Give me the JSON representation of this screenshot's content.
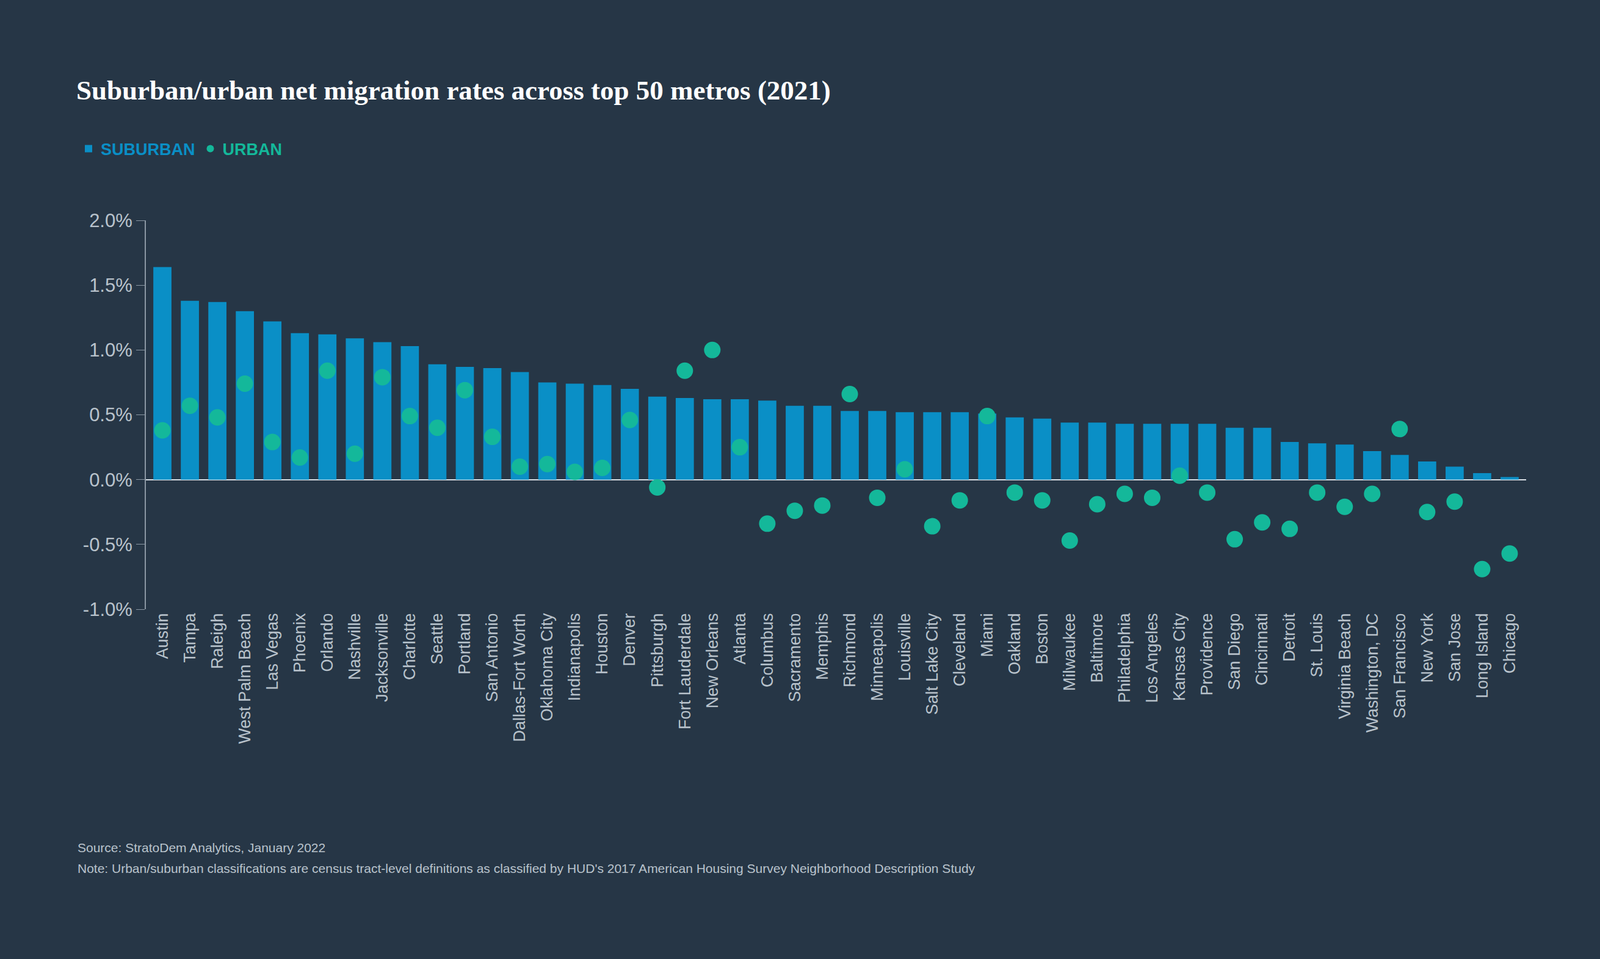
{
  "chart_data": {
    "type": "bar",
    "title": "Suburban/urban net migration rates across top 50 metros (2021)",
    "categories": [
      "Austin",
      "Tampa",
      "Raleigh",
      "West Palm Beach",
      "Las Vegas",
      "Phoenix",
      "Orlando",
      "Nashville",
      "Jacksonville",
      "Charlotte",
      "Seattle",
      "Portland",
      "San Antonio",
      "Dallas-Fort Worth",
      "Oklahoma City",
      "Indianapolis",
      "Houston",
      "Denver",
      "Pittsburgh",
      "Fort Lauderdale",
      "New Orleans",
      "Atlanta",
      "Columbus",
      "Sacramento",
      "Memphis",
      "Richmond",
      "Minneapolis",
      "Louisville",
      "Salt Lake City",
      "Cleveland",
      "Miami",
      "Oakland",
      "Boston",
      "Milwaukee",
      "Baltimore",
      "Philadelphia",
      "Los Angeles",
      "Kansas City",
      "Providence",
      "San Diego",
      "Cincinnati",
      "Detroit",
      "St. Louis",
      "Virginia Beach",
      "Washington, DC",
      "San Francisco",
      "New York",
      "San Jose",
      "Long Island",
      "Chicago"
    ],
    "series": [
      {
        "name": "SUBURBAN",
        "type": "bar",
        "color": "#0a8fc6",
        "values": [
          1.64,
          1.38,
          1.37,
          1.3,
          1.22,
          1.13,
          1.12,
          1.09,
          1.06,
          1.03,
          0.89,
          0.87,
          0.86,
          0.83,
          0.75,
          0.74,
          0.73,
          0.7,
          0.64,
          0.63,
          0.62,
          0.62,
          0.61,
          0.57,
          0.57,
          0.53,
          0.53,
          0.52,
          0.52,
          0.52,
          0.51,
          0.48,
          0.47,
          0.44,
          0.44,
          0.43,
          0.43,
          0.43,
          0.43,
          0.4,
          0.4,
          0.29,
          0.28,
          0.27,
          0.22,
          0.19,
          0.14,
          0.1,
          0.05,
          0.02
        ]
      },
      {
        "name": "URBAN",
        "type": "scatter",
        "marker": "circle",
        "color": "#14b89a",
        "values": [
          0.38,
          0.57,
          0.48,
          0.74,
          0.29,
          0.17,
          0.84,
          0.2,
          0.79,
          0.49,
          0.4,
          0.69,
          0.33,
          0.1,
          0.12,
          0.06,
          0.09,
          0.46,
          -0.06,
          0.84,
          1.0,
          0.25,
          -0.34,
          -0.24,
          -0.2,
          0.66,
          -0.14,
          0.08,
          -0.36,
          -0.16,
          0.49,
          -0.1,
          -0.16,
          -0.47,
          -0.19,
          -0.11,
          -0.14,
          0.03,
          -0.1,
          -0.46,
          -0.33,
          -0.38,
          -0.1,
          -0.21,
          -0.11,
          0.39,
          -0.25,
          -0.17,
          -0.69,
          -0.57
        ]
      }
    ],
    "ylim": [
      -1.0,
      2.0
    ],
    "yticks": [
      {
        "value": -1.0,
        "label": "-1.0%"
      },
      {
        "value": -0.5,
        "label": "-0.5%"
      },
      {
        "value": 0.0,
        "label": "0.0%"
      },
      {
        "value": 0.5,
        "label": "0.5%"
      },
      {
        "value": 1.0,
        "label": "1.0%"
      },
      {
        "value": 1.5,
        "label": "1.5%"
      },
      {
        "value": 2.0,
        "label": "2.0%"
      }
    ],
    "grid": false,
    "legend": "top left",
    "annotations": [
      "Source: StratoDem Analytics, January 2022",
      "Note: Urban/suburban classifications are census tract-level definitions as classified by HUD's 2017 American Housing Survey Neighborhood Description Study"
    ]
  }
}
